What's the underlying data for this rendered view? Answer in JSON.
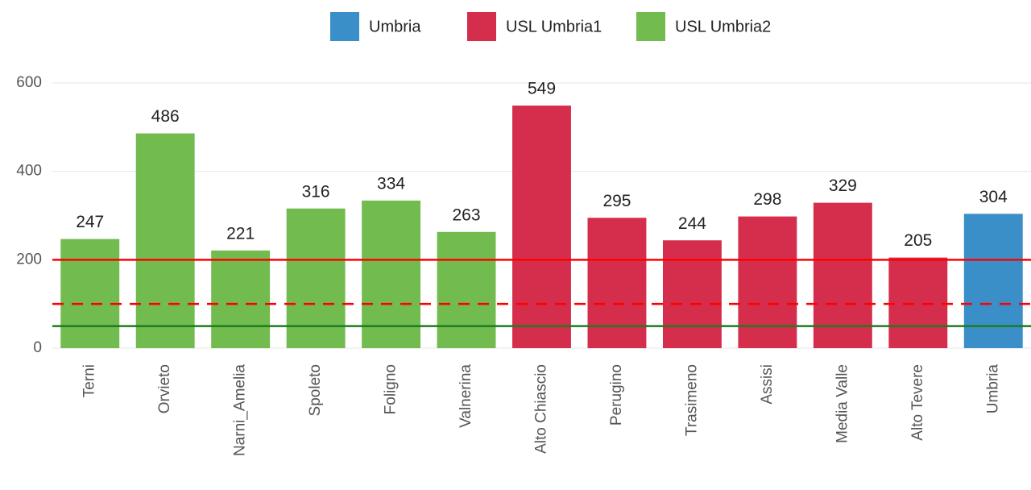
{
  "chart_data": {
    "type": "bar",
    "categories": [
      "Terni",
      "Orvieto",
      "Narni_Amelia",
      "Spoleto",
      "Foligno",
      "Valnerina",
      "Alto Chiascio",
      "Perugino",
      "Trasimeno",
      "Assisi",
      "Media Valle",
      "Alto Tevere",
      "Umbria"
    ],
    "series": [
      {
        "name": "Umbria",
        "color": "#3a8fc8",
        "values": [
          null,
          null,
          null,
          null,
          null,
          null,
          null,
          null,
          null,
          null,
          null,
          null,
          304
        ]
      },
      {
        "name": "USL Umbria1",
        "color": "#d42e4c",
        "values": [
          null,
          null,
          null,
          null,
          null,
          null,
          549,
          295,
          244,
          298,
          329,
          205,
          null
        ]
      },
      {
        "name": "USL Umbria2",
        "color": "#72bb4f",
        "values": [
          247,
          486,
          221,
          316,
          334,
          263,
          null,
          null,
          null,
          null,
          null,
          null,
          null
        ]
      }
    ],
    "ylim": [
      0,
      600
    ],
    "yticks": [
      0,
      200,
      400,
      600
    ],
    "grid": true,
    "reference_lines": [
      {
        "value": 200,
        "color": "#ff0000",
        "style": "solid"
      },
      {
        "value": 100,
        "color": "#ff0000",
        "style": "dashed"
      },
      {
        "value": 50,
        "color": "#1e7b1e",
        "style": "solid"
      }
    ]
  }
}
